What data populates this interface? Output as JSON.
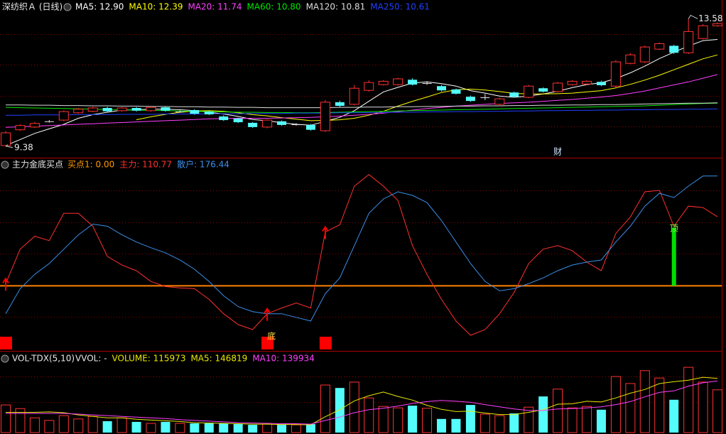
{
  "chart_data": [
    {
      "type": "candlestick",
      "title": "深纺织Ａ (日线)",
      "up_color": "#ff3232",
      "down_color": "#54fcfc",
      "flat_color": "#e8e8e8",
      "ylim": [
        9.0,
        14.2
      ],
      "open": [
        9.4,
        9.92,
        10.01,
        10.2,
        10.24,
        10.48,
        10.53,
        10.64,
        10.55,
        10.64,
        10.55,
        10.66,
        10.52,
        10.57,
        10.52,
        10.36,
        10.29,
        10.15,
        10.01,
        10.2,
        10.1,
        10.08,
        9.89,
        10.83,
        10.76,
        11.22,
        11.41,
        11.41,
        11.57,
        11.46,
        11.36,
        11.25,
        11.01,
        10.99,
        10.76,
        11.15,
        10.99,
        11.29,
        11.18,
        11.41,
        11.43,
        11.5,
        11.36,
        12.11,
        12.16,
        12.58,
        12.69,
        12.46,
        12.93,
        13.35
      ],
      "high": [
        9.88,
        10.1,
        10.18,
        10.24,
        10.56,
        10.64,
        10.68,
        10.68,
        10.67,
        10.67,
        10.69,
        10.69,
        10.56,
        10.6,
        10.55,
        10.4,
        10.32,
        10.18,
        10.27,
        10.23,
        10.14,
        10.11,
        10.9,
        10.88,
        11.4,
        11.55,
        11.56,
        11.64,
        11.62,
        11.52,
        11.4,
        11.28,
        11.05,
        11.1,
        10.98,
        11.18,
        11.4,
        11.32,
        11.5,
        11.56,
        11.55,
        11.54,
        12.22,
        12.45,
        12.7,
        12.8,
        12.72,
        13.58,
        13.4,
        13.46
      ],
      "low": [
        9.38,
        9.88,
        9.98,
        10.16,
        10.2,
        10.45,
        10.5,
        10.5,
        10.52,
        10.52,
        10.52,
        10.52,
        10.48,
        10.42,
        10.4,
        10.21,
        10.14,
        9.98,
        9.97,
        10.05,
        10.06,
        9.89,
        9.85,
        10.67,
        10.72,
        11.18,
        11.38,
        11.37,
        11.38,
        11.4,
        11.18,
        11.08,
        10.84,
        10.9,
        10.7,
        10.98,
        10.96,
        11.15,
        11.15,
        11.38,
        11.4,
        11.36,
        11.32,
        12.08,
        12.12,
        12.55,
        12.42,
        12.42,
        12.9,
        13.32
      ],
      "close": [
        9.82,
        10.06,
        10.13,
        10.2,
        10.52,
        10.6,
        10.64,
        10.53,
        10.64,
        10.55,
        10.66,
        10.55,
        10.52,
        10.45,
        10.43,
        10.24,
        10.17,
        10.01,
        10.24,
        10.08,
        10.1,
        9.92,
        10.83,
        10.71,
        11.29,
        11.48,
        11.52,
        11.6,
        11.41,
        11.46,
        11.22,
        11.11,
        10.87,
        10.99,
        10.94,
        11.01,
        11.36,
        11.18,
        11.46,
        11.52,
        11.52,
        11.39,
        12.16,
        12.39,
        12.65,
        12.76,
        12.46,
        13.16,
        13.35,
        13.42
      ],
      "max_label": "13.58",
      "min_label": "9.38",
      "events": [
        null,
        null,
        null,
        null,
        null,
        null,
        null,
        null,
        null,
        null,
        null,
        null,
        null,
        null,
        null,
        null,
        null,
        null,
        null,
        null,
        null,
        null,
        null,
        null,
        null,
        null,
        null,
        null,
        null,
        null,
        null,
        null,
        null,
        null,
        null,
        null,
        null,
        null,
        "财",
        null,
        null,
        null,
        null,
        null,
        null,
        null,
        null,
        null,
        null,
        null
      ],
      "series": [
        {
          "name": "MA5: 12.90",
          "color": "#ffffff",
          "values": [
            9.4,
            9.6,
            9.8,
            9.95,
            10.1,
            10.3,
            10.42,
            10.5,
            10.57,
            10.58,
            10.6,
            10.6,
            10.58,
            10.55,
            10.5,
            10.44,
            10.36,
            10.26,
            10.22,
            10.15,
            10.1,
            10.07,
            10.2,
            10.33,
            10.55,
            10.86,
            11.17,
            11.32,
            11.46,
            11.5,
            11.44,
            11.36,
            11.21,
            11.13,
            11.03,
            10.99,
            11.03,
            11.1,
            11.19,
            11.31,
            11.41,
            11.47,
            11.61,
            11.8,
            12.02,
            12.27,
            12.48,
            12.68,
            12.86,
            12.9
          ]
        },
        {
          "name": "MA10: 12.39",
          "color": "#ffff00",
          "values": [
            null,
            null,
            null,
            null,
            null,
            null,
            null,
            null,
            null,
            10.25,
            10.35,
            10.43,
            10.5,
            10.54,
            10.55,
            10.53,
            10.48,
            10.42,
            10.38,
            10.32,
            10.27,
            10.22,
            10.23,
            10.25,
            10.3,
            10.4,
            10.53,
            10.7,
            10.86,
            11.0,
            11.15,
            11.24,
            11.26,
            11.23,
            11.18,
            11.12,
            11.1,
            11.1,
            11.11,
            11.13,
            11.17,
            11.21,
            11.3,
            11.42,
            11.56,
            11.72,
            11.9,
            12.08,
            12.26,
            12.39
          ]
        },
        {
          "name": "MA20: 11.74",
          "color": "#ff40ff",
          "values": [
            10.0,
            10.02,
            10.04,
            10.06,
            10.08,
            10.1,
            10.12,
            10.14,
            10.16,
            10.18,
            10.2,
            10.22,
            10.24,
            10.26,
            10.28,
            10.29,
            10.3,
            10.3,
            10.3,
            10.31,
            10.32,
            10.33,
            10.35,
            10.37,
            10.4,
            10.43,
            10.47,
            10.52,
            10.57,
            10.62,
            10.66,
            10.7,
            10.73,
            10.76,
            10.79,
            10.81,
            10.83,
            10.86,
            10.89,
            10.92,
            10.96,
            11.0,
            11.05,
            11.12,
            11.2,
            11.3,
            11.4,
            11.5,
            11.62,
            11.74
          ]
        },
        {
          "name": "MA60: 10.80",
          "color": "#00e600",
          "values": [
            10.66,
            10.65,
            10.64,
            10.63,
            10.62,
            10.61,
            10.6,
            10.59,
            10.58,
            10.57,
            10.56,
            10.55,
            10.54,
            10.53,
            10.52,
            10.51,
            10.5,
            10.5,
            10.49,
            10.49,
            10.48,
            10.48,
            10.49,
            10.5,
            10.51,
            10.52,
            10.53,
            10.54,
            10.55,
            10.56,
            10.57,
            10.58,
            10.59,
            10.6,
            10.61,
            10.62,
            10.63,
            10.64,
            10.65,
            10.66,
            10.67,
            10.68,
            10.69,
            10.7,
            10.71,
            10.73,
            10.75,
            10.77,
            10.79,
            10.8
          ]
        },
        {
          "name": "MA120: 10.81",
          "color": "#dcdcdc",
          "values": [
            10.74,
            10.74,
            10.73,
            10.73,
            10.72,
            10.72,
            10.71,
            10.71,
            10.7,
            10.7,
            10.69,
            10.69,
            10.68,
            10.68,
            10.67,
            10.67,
            10.66,
            10.66,
            10.65,
            10.65,
            10.65,
            10.65,
            10.65,
            10.66,
            10.66,
            10.67,
            10.67,
            10.68,
            10.68,
            10.69,
            10.69,
            10.7,
            10.7,
            10.71,
            10.71,
            10.72,
            10.72,
            10.73,
            10.73,
            10.74,
            10.74,
            10.75,
            10.75,
            10.76,
            10.77,
            10.78,
            10.79,
            10.8,
            10.8,
            10.81
          ]
        },
        {
          "name": "MA250: 10.61",
          "color": "#2040ff",
          "values": [
            10.4,
            10.4,
            10.41,
            10.41,
            10.41,
            10.42,
            10.42,
            10.42,
            10.43,
            10.43,
            10.43,
            10.44,
            10.44,
            10.44,
            10.45,
            10.45,
            10.45,
            10.46,
            10.46,
            10.46,
            10.47,
            10.47,
            10.47,
            10.48,
            10.48,
            10.49,
            10.49,
            10.5,
            10.5,
            10.51,
            10.51,
            10.52,
            10.52,
            10.53,
            10.53,
            10.54,
            10.54,
            10.55,
            10.55,
            10.56,
            10.56,
            10.57,
            10.57,
            10.58,
            10.58,
            10.59,
            10.59,
            10.6,
            10.6,
            10.61
          ]
        }
      ]
    },
    {
      "type": "line",
      "title": "主力金底买点",
      "ylim": [
        -100,
        200
      ],
      "baseline": 0,
      "baseline_color": "#ff8000",
      "buy_name": "买点1: 0.00",
      "buy_name_color": "#ff9a00",
      "signal_color": "#ff0000",
      "top_bar_color": "#00e000",
      "buy_signal": [
        1,
        null,
        null,
        null,
        null,
        null,
        null,
        null,
        null,
        null,
        null,
        null,
        null,
        null,
        null,
        null,
        null,
        null,
        1,
        null,
        null,
        null,
        1,
        null,
        null,
        null,
        null,
        null,
        null,
        null,
        null,
        null,
        null,
        null,
        null,
        null,
        null,
        null,
        null,
        null,
        null,
        null,
        null,
        null,
        null,
        null,
        null,
        null,
        null,
        null
      ],
      "top_bar": [
        null,
        null,
        null,
        null,
        null,
        null,
        null,
        null,
        null,
        null,
        null,
        null,
        null,
        null,
        null,
        null,
        null,
        null,
        null,
        null,
        null,
        null,
        null,
        null,
        null,
        null,
        null,
        null,
        null,
        null,
        null,
        null,
        null,
        null,
        null,
        null,
        null,
        null,
        null,
        null,
        null,
        null,
        null,
        null,
        null,
        null,
        93,
        null,
        null,
        null
      ],
      "signal_labels": [
        null,
        null,
        null,
        null,
        null,
        null,
        null,
        null,
        null,
        null,
        null,
        null,
        null,
        null,
        null,
        null,
        null,
        null,
        "底",
        null,
        null,
        null,
        null,
        null,
        null,
        null,
        null,
        null,
        null,
        null,
        null,
        null,
        null,
        null,
        null,
        null,
        null,
        null,
        null,
        null,
        null,
        null,
        null,
        null,
        null,
        null,
        "顶",
        null,
        null,
        null
      ],
      "series": [
        {
          "name": "主力: 110.77",
          "color": "#ff3030",
          "values": [
            3.5,
            58.8,
            79.5,
            72.6,
            116.4,
            116.4,
            95.6,
            47.2,
            33.4,
            24.2,
            6.9,
            -1.2,
            -3.5,
            -4.6,
            -21.9,
            -44.9,
            -62.2,
            -70.3,
            -44.9,
            -35.7,
            -27.6,
            -35.7,
            86.4,
            97.9,
            160.1,
            178.6,
            160.1,
            137.1,
            64.5,
            18.4,
            -21.9,
            -56.5,
            -79.5,
            -70.3,
            -44.9,
            -10.4,
            35.7,
            58.8,
            64.5,
            56.5,
            38.0,
            24.2,
            84.1,
            110.6,
            150.9,
            153.2,
            95.6,
            127.9,
            125.6,
            110.77
          ]
        },
        {
          "name": "散户: 176.44",
          "color": "#3a8fe8",
          "values": [
            -44.9,
            -4.6,
            18.4,
            35.7,
            58.8,
            81.8,
            99.1,
            95.6,
            81.8,
            70.3,
            61.1,
            53.0,
            41.5,
            26.5,
            6.9,
            -16.1,
            -33.4,
            -41.5,
            -44.9,
            -44.9,
            -50.7,
            -56.5,
            -12.7,
            12.7,
            64.5,
            116.4,
            139.4,
            150.9,
            145.2,
            133.6,
            104.8,
            70.3,
            35.7,
            6.9,
            -8.1,
            -4.6,
            3.5,
            12.7,
            24.2,
            33.4,
            38.0,
            41.5,
            70.3,
            95.6,
            127.9,
            148.6,
            141.7,
            160.1,
            176.3,
            176.44
          ]
        }
      ]
    },
    {
      "type": "bar",
      "title": "VOL-TDX(5,10)",
      "subtitle": "VVOL: -",
      "ylim": [
        0,
        210000
      ],
      "up_color": "#ff3232",
      "down_color": "#54fcfc",
      "series": [
        {
          "name": "VOLUME: 115973",
          "color": "#e8e800",
          "style": "bar",
          "values": [
            75000,
            65000,
            40000,
            33000,
            46000,
            37000,
            44000,
            31000,
            40000,
            29000,
            25000,
            29000,
            25000,
            25000,
            25000,
            25000,
            23000,
            21000,
            23000,
            21000,
            21000,
            23000,
            129000,
            121000,
            137000,
            94000,
            71000,
            67000,
            73000,
            66000,
            37000,
            37000,
            75000,
            50000,
            46000,
            52000,
            69000,
            98000,
            118000,
            67000,
            71000,
            62000,
            152000,
            133000,
            168000,
            148000,
            89000,
            177000,
            137000,
            115973
          ]
        },
        {
          "name": "MA5: 146819",
          "color": "#e8e800",
          "values": [
            55000,
            55000,
            55000,
            56000,
            54000,
            48000,
            44000,
            40000,
            40000,
            36000,
            34000,
            32000,
            30000,
            27000,
            26000,
            25000,
            24000,
            23000,
            23000,
            22000,
            22000,
            21000,
            43000,
            62000,
            86000,
            100000,
            110000,
            98000,
            88000,
            74000,
            63000,
            57000,
            58000,
            53000,
            49000,
            49000,
            55000,
            62000,
            77000,
            78000,
            85000,
            83000,
            94000,
            107000,
            117000,
            133000,
            138000,
            142000,
            150000,
            146819
          ]
        },
        {
          "name": "MA10: 139934",
          "color": "#ff40ff",
          "values": [
            52000,
            52000,
            52000,
            52000,
            52000,
            50000,
            48000,
            46000,
            44000,
            42000,
            40000,
            38000,
            35000,
            33000,
            31000,
            29000,
            27000,
            26000,
            25000,
            24000,
            24000,
            23000,
            33000,
            42000,
            54000,
            62000,
            66000,
            72000,
            79000,
            84000,
            87000,
            85000,
            82000,
            76000,
            70000,
            64000,
            60000,
            60000,
            64000,
            65000,
            67000,
            70000,
            76000,
            84000,
            97000,
            109000,
            113000,
            126000,
            135000,
            139934
          ]
        }
      ]
    }
  ]
}
